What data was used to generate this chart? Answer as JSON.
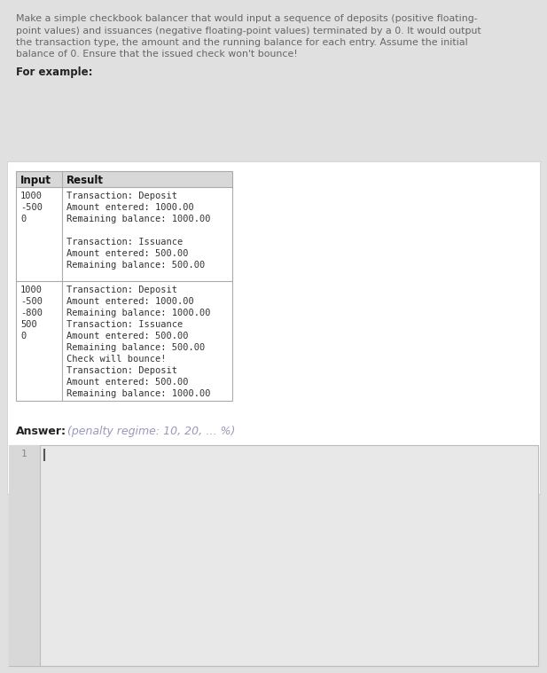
{
  "bg_color": "#e0e0e0",
  "white_panel_color": "#ffffff",
  "answer_panel_bg": "#e8e8e8",
  "table_header_bg": "#d8d8d8",
  "table_border_color": "#aaaaaa",
  "description_lines": [
    "Make a simple checkbook balancer that would input a sequence of deposits (positive floating-",
    "point values) and issuances (negative floating-point values) terminated by a 0. It would output",
    "the transaction type, the amount and the running balance for each entry. Assume the initial",
    "balance of 0. Ensure that the issued check won't bounce!"
  ],
  "for_example_label": "For example:",
  "table_header": [
    "Input",
    "Result"
  ],
  "example1_input": [
    "1000",
    "-500",
    "0"
  ],
  "example1_result": [
    "Transaction: Deposit",
    "Amount entered: 1000.00",
    "Remaining balance: 1000.00",
    "",
    "Transaction: Issuance",
    "Amount entered: 500.00",
    "Remaining balance: 500.00"
  ],
  "example2_input": [
    "1000",
    "-500",
    "-800",
    "500",
    "0"
  ],
  "example2_result": [
    "Transaction: Deposit",
    "Amount entered: 1000.00",
    "Remaining balance: 1000.00",
    "Transaction: Issuance",
    "Amount entered: 500.00",
    "Remaining balance: 500.00",
    "Check will bounce!",
    "Transaction: Deposit",
    "Amount entered: 500.00",
    "Remaining balance: 1000.00"
  ],
  "answer_label": "Answer:",
  "answer_note": "(penalty regime: 10, 20, … %)",
  "answer_line_number": "1",
  "mono_font": "monospace",
  "sans_font": "DejaVu Sans",
  "title_color": "#666666",
  "text_color": "#333333",
  "answer_color": "#9999bb"
}
